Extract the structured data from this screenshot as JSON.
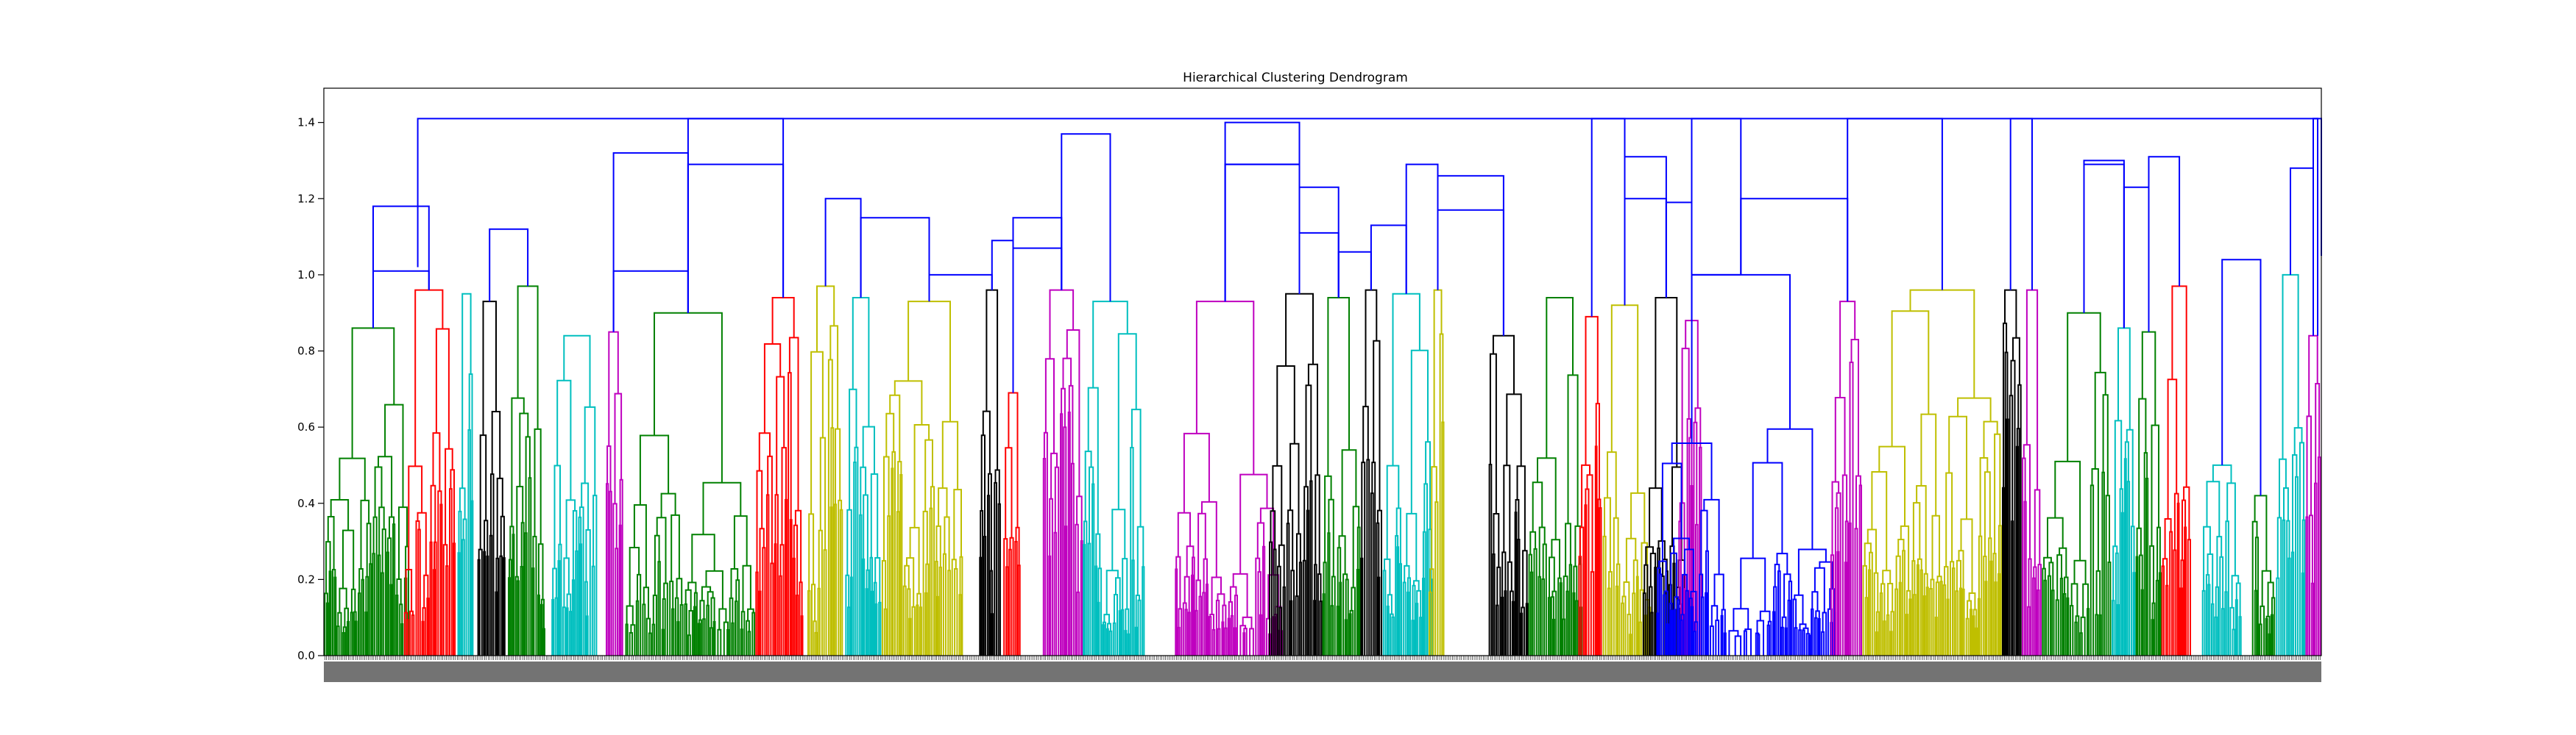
{
  "chart_data": {
    "type": "dendrogram",
    "title": "Hierarchical Clustering Dendrogram",
    "xlabel": "",
    "ylabel": "",
    "ylim": [
      0,
      1.49
    ],
    "yticks": [
      "0.0",
      "0.2",
      "0.4",
      "0.6",
      "0.8",
      "1.0",
      "1.2",
      "1.4"
    ],
    "leaf_count": 1100,
    "grid": false,
    "colors": {
      "blue": "#0000ff",
      "green": "#008000",
      "red": "#ff0000",
      "cyan": "#00bfbf",
      "magenta": "#bf00bf",
      "yellow": "#bfbf00",
      "black": "#000000"
    },
    "top_merges": [
      {
        "x": 0.01,
        "height": 1.01
      },
      {
        "x": 0.021,
        "height": 1.18
      },
      {
        "x": 0.085,
        "height": 1.12
      },
      {
        "x": 0.137,
        "height": 1.32
      },
      {
        "x": 0.17,
        "height": 1.29
      },
      {
        "x": 0.142,
        "height": 1.01
      },
      {
        "x": 0.189,
        "height": 1.41
      },
      {
        "x": 0.25,
        "height": 1.2
      },
      {
        "x": 0.272,
        "height": 1.15
      },
      {
        "x": 0.289,
        "height": 1.0
      },
      {
        "x": 0.319,
        "height": 1.09
      },
      {
        "x": 0.346,
        "height": 1.07
      },
      {
        "x": 0.356,
        "height": 1.15
      },
      {
        "x": 0.381,
        "height": 1.37
      },
      {
        "x": 0.432,
        "height": 1.4
      },
      {
        "x": 0.454,
        "height": 1.29
      },
      {
        "x": 0.469,
        "height": 1.29
      },
      {
        "x": 0.487,
        "height": 1.11
      },
      {
        "x": 0.497,
        "height": 1.23
      },
      {
        "x": 0.514,
        "height": 1.06
      },
      {
        "x": 0.523,
        "height": 1.13
      },
      {
        "x": 0.548,
        "height": 1.29
      },
      {
        "x": 0.556,
        "height": 1.26
      },
      {
        "x": 0.563,
        "height": 1.17
      },
      {
        "x": 0.63,
        "height": 1.41
      },
      {
        "x": 0.649,
        "height": 1.2
      },
      {
        "x": 0.661,
        "height": 1.31
      },
      {
        "x": 0.67,
        "height": 1.19
      },
      {
        "x": 0.687,
        "height": 1.41
      },
      {
        "x": 0.692,
        "height": 1.0
      },
      {
        "x": 0.722,
        "height": 1.2
      },
      {
        "x": 0.77,
        "height": 1.41
      },
      {
        "x": 0.83,
        "height": 1.41
      },
      {
        "x": 0.871,
        "height": 1.3
      },
      {
        "x": 0.885,
        "height": 1.29
      },
      {
        "x": 0.902,
        "height": 1.23
      },
      {
        "x": 0.918,
        "height": 1.31
      },
      {
        "x": 0.955,
        "height": 1.04
      },
      {
        "x": 0.982,
        "height": 1.28
      },
      {
        "x": 0.993,
        "height": 1.41
      },
      {
        "x": 1.0,
        "height": 1.41
      }
    ],
    "clusters": [
      {
        "color": "green",
        "x0": 0.0,
        "x1": 0.043,
        "height": 0.86
      },
      {
        "color": "red",
        "x0": 0.04,
        "x1": 0.066,
        "height": 0.96
      },
      {
        "color": "cyan",
        "x0": 0.067,
        "x1": 0.075,
        "height": 0.95
      },
      {
        "color": "black",
        "x0": 0.077,
        "x1": 0.091,
        "height": 0.93
      },
      {
        "color": "green",
        "x0": 0.092,
        "x1": 0.111,
        "height": 0.97
      },
      {
        "color": "cyan",
        "x0": 0.114,
        "x1": 0.137,
        "height": 0.84
      },
      {
        "color": "magenta",
        "x0": 0.141,
        "x1": 0.15,
        "height": 0.85
      },
      {
        "color": "green",
        "x0": 0.151,
        "x1": 0.216,
        "height": 0.9
      },
      {
        "color": "red",
        "x0": 0.216,
        "x1": 0.24,
        "height": 0.94
      },
      {
        "color": "yellow",
        "x0": 0.242,
        "x1": 0.26,
        "height": 0.97
      },
      {
        "color": "cyan",
        "x0": 0.261,
        "x1": 0.279,
        "height": 0.94
      },
      {
        "color": "yellow",
        "x0": 0.279,
        "x1": 0.32,
        "height": 0.93
      },
      {
        "color": "black",
        "x0": 0.328,
        "x1": 0.339,
        "height": 0.96
      },
      {
        "color": "red",
        "x0": 0.34,
        "x1": 0.349,
        "height": 0.69
      },
      {
        "color": "magenta",
        "x0": 0.36,
        "x1": 0.38,
        "height": 0.96
      },
      {
        "color": "cyan",
        "x0": 0.38,
        "x1": 0.411,
        "height": 0.93
      },
      {
        "color": "magenta",
        "x0": 0.426,
        "x1": 0.48,
        "height": 0.93
      },
      {
        "color": "black",
        "x0": 0.473,
        "x1": 0.5,
        "height": 0.95
      },
      {
        "color": "green",
        "x0": 0.5,
        "x1": 0.519,
        "height": 0.94
      },
      {
        "color": "black",
        "x0": 0.519,
        "x1": 0.53,
        "height": 0.96
      },
      {
        "color": "cyan",
        "x0": 0.53,
        "x1": 0.555,
        "height": 0.95
      },
      {
        "color": "yellow",
        "x0": 0.553,
        "x1": 0.561,
        "height": 0.96
      },
      {
        "color": "black",
        "x0": 0.583,
        "x1": 0.603,
        "height": 0.84
      },
      {
        "color": "green",
        "x0": 0.603,
        "x1": 0.63,
        "height": 0.94
      },
      {
        "color": "red",
        "x0": 0.628,
        "x1": 0.64,
        "height": 0.89
      },
      {
        "color": "yellow",
        "x0": 0.64,
        "x1": 0.665,
        "height": 0.92
      },
      {
        "color": "black",
        "x0": 0.66,
        "x1": 0.682,
        "height": 0.94
      },
      {
        "color": "magenta",
        "x0": 0.678,
        "x1": 0.69,
        "height": 0.88
      },
      {
        "color": "blue",
        "x0": 0.667,
        "x1": 0.757,
        "height": 1.0
      },
      {
        "color": "magenta",
        "x0": 0.754,
        "x1": 0.77,
        "height": 0.93
      },
      {
        "color": "yellow",
        "x0": 0.77,
        "x1": 0.84,
        "height": 0.96
      },
      {
        "color": "black",
        "x0": 0.84,
        "x1": 0.85,
        "height": 0.96
      },
      {
        "color": "magenta",
        "x0": 0.85,
        "x1": 0.86,
        "height": 0.96
      },
      {
        "color": "green",
        "x0": 0.86,
        "x1": 0.895,
        "height": 0.9
      },
      {
        "color": "cyan",
        "x0": 0.895,
        "x1": 0.907,
        "height": 0.86
      },
      {
        "color": "green",
        "x0": 0.907,
        "x1": 0.92,
        "height": 0.85
      },
      {
        "color": "red",
        "x0": 0.92,
        "x1": 0.935,
        "height": 0.97
      },
      {
        "color": "cyan",
        "x0": 0.94,
        "x1": 0.96,
        "height": 0.5
      },
      {
        "color": "green",
        "x0": 0.965,
        "x1": 0.977,
        "height": 0.42
      },
      {
        "color": "cyan",
        "x0": 0.977,
        "x1": 0.992,
        "height": 1.0
      },
      {
        "color": "magenta",
        "x0": 0.992,
        "x1": 1.0,
        "height": 0.84
      }
    ]
  }
}
